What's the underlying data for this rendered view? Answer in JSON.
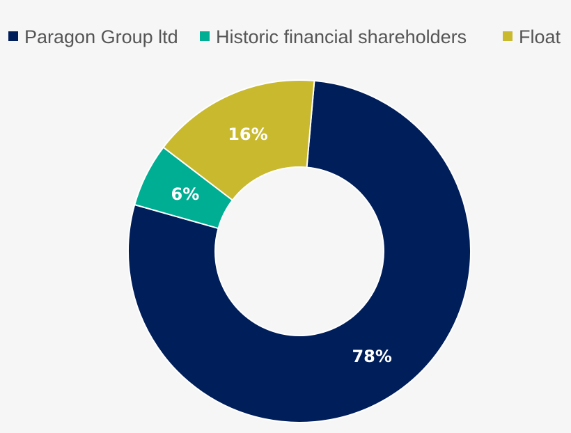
{
  "chart_data": {
    "type": "pie",
    "variant": "donut",
    "categories": [
      "Paragon Group ltd",
      "Historic financial shareholders",
      "Float"
    ],
    "values": [
      78,
      6,
      16
    ],
    "labels": [
      "78%",
      "6%",
      "16%"
    ],
    "colors": [
      "#001e5a",
      "#00ae93",
      "#c8b92f"
    ],
    "title": "",
    "legend": "top"
  }
}
